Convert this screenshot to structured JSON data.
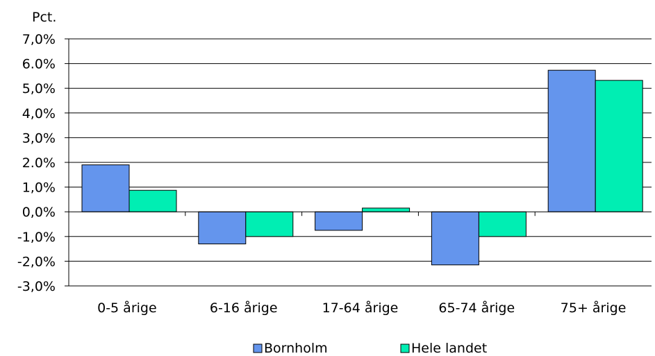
{
  "chart_data": {
    "type": "bar",
    "ylabel": "Pct.",
    "categories": [
      "0-5 årige",
      "6-16 årige",
      "17-64 årige",
      "65-74 årige",
      "75+ årige"
    ],
    "series": [
      {
        "name": "Bornholm",
        "color": "#6495ED",
        "values": [
          1.9,
          -1.3,
          -0.75,
          -2.15,
          5.73
        ]
      },
      {
        "name": "Hele landet",
        "color": "#00EEB3",
        "values": [
          0.87,
          -1.0,
          0.15,
          -1.0,
          5.32
        ]
      }
    ],
    "ylim": [
      -3,
      7
    ],
    "yticks": [
      7,
      6,
      5,
      4,
      3,
      2,
      1,
      0,
      -1,
      -2,
      -3
    ],
    "ytick_labels": [
      "7,0%",
      "6.0%",
      "5,0%",
      "4,0%",
      "3,0%",
      "2.0%",
      "1,0%",
      "0,0%",
      "-1,0%",
      "-2,0%",
      "-3,0%"
    ],
    "grid": true,
    "legend_position": "bottom"
  }
}
